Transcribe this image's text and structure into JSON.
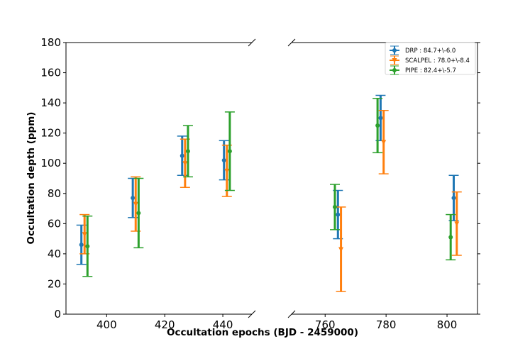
{
  "chart_data": {
    "type": "errorbar",
    "xlabel": "Occultation epochs (BJD - 2459000)",
    "ylabel": "Occultation depth (ppm)",
    "ylim": [
      0,
      180
    ],
    "yticks": [
      0,
      20,
      40,
      60,
      80,
      100,
      120,
      140,
      160,
      180
    ],
    "panels": [
      {
        "name": "left",
        "xlim": [
          386,
          450
        ],
        "xticks": [
          400,
          420,
          440
        ]
      },
      {
        "name": "right",
        "xlim": [
          749,
          810
        ],
        "xticks": [
          760,
          780,
          800
        ]
      }
    ],
    "legend": {
      "location": "top-right"
    },
    "series": [
      {
        "name": "DRP",
        "label": "DRP : 84.7+\\-6.0",
        "color": "#1f77b4",
        "marker": "circle",
        "points": [
          {
            "x": 391.3,
            "y": 46,
            "err": 13
          },
          {
            "x": 409.0,
            "y": 77,
            "err": 13
          },
          {
            "x": 426.0,
            "y": 105,
            "err": 13
          },
          {
            "x": 440.4,
            "y": 102,
            "err": 13
          },
          {
            "x": 764.2,
            "y": 66,
            "err": 16
          },
          {
            "x": 778.2,
            "y": 130,
            "err": 15
          },
          {
            "x": 802.2,
            "y": 77,
            "err": 15
          }
        ]
      },
      {
        "name": "SCALPEL",
        "label": "SCALPEL : 78.0+\\-8.4",
        "color": "#ff7f0e",
        "marker": "triangle-down",
        "points": [
          {
            "x": 392.4,
            "y": 53,
            "err": 13
          },
          {
            "x": 410.0,
            "y": 73,
            "err": 18
          },
          {
            "x": 427.0,
            "y": 100,
            "err": 16
          },
          {
            "x": 441.4,
            "y": 95,
            "err": 17
          },
          {
            "x": 765.2,
            "y": 43,
            "err": 28
          },
          {
            "x": 779.2,
            "y": 114,
            "err": 21
          },
          {
            "x": 803.2,
            "y": 60,
            "err": 21
          }
        ]
      },
      {
        "name": "PIPE",
        "label": "PIPE : 82.4+\\-5.7",
        "color": "#2ca02c",
        "marker": "circle",
        "points": [
          {
            "x": 393.4,
            "y": 45,
            "err": 20
          },
          {
            "x": 411.0,
            "y": 67,
            "err": 23
          },
          {
            "x": 428.0,
            "y": 108,
            "err": 17
          },
          {
            "x": 442.4,
            "y": 108,
            "err": 26
          },
          {
            "x": 763.2,
            "y": 71,
            "err": 15
          },
          {
            "x": 777.2,
            "y": 125,
            "err": 18
          },
          {
            "x": 801.2,
            "y": 51,
            "err": 15
          }
        ]
      }
    ]
  }
}
